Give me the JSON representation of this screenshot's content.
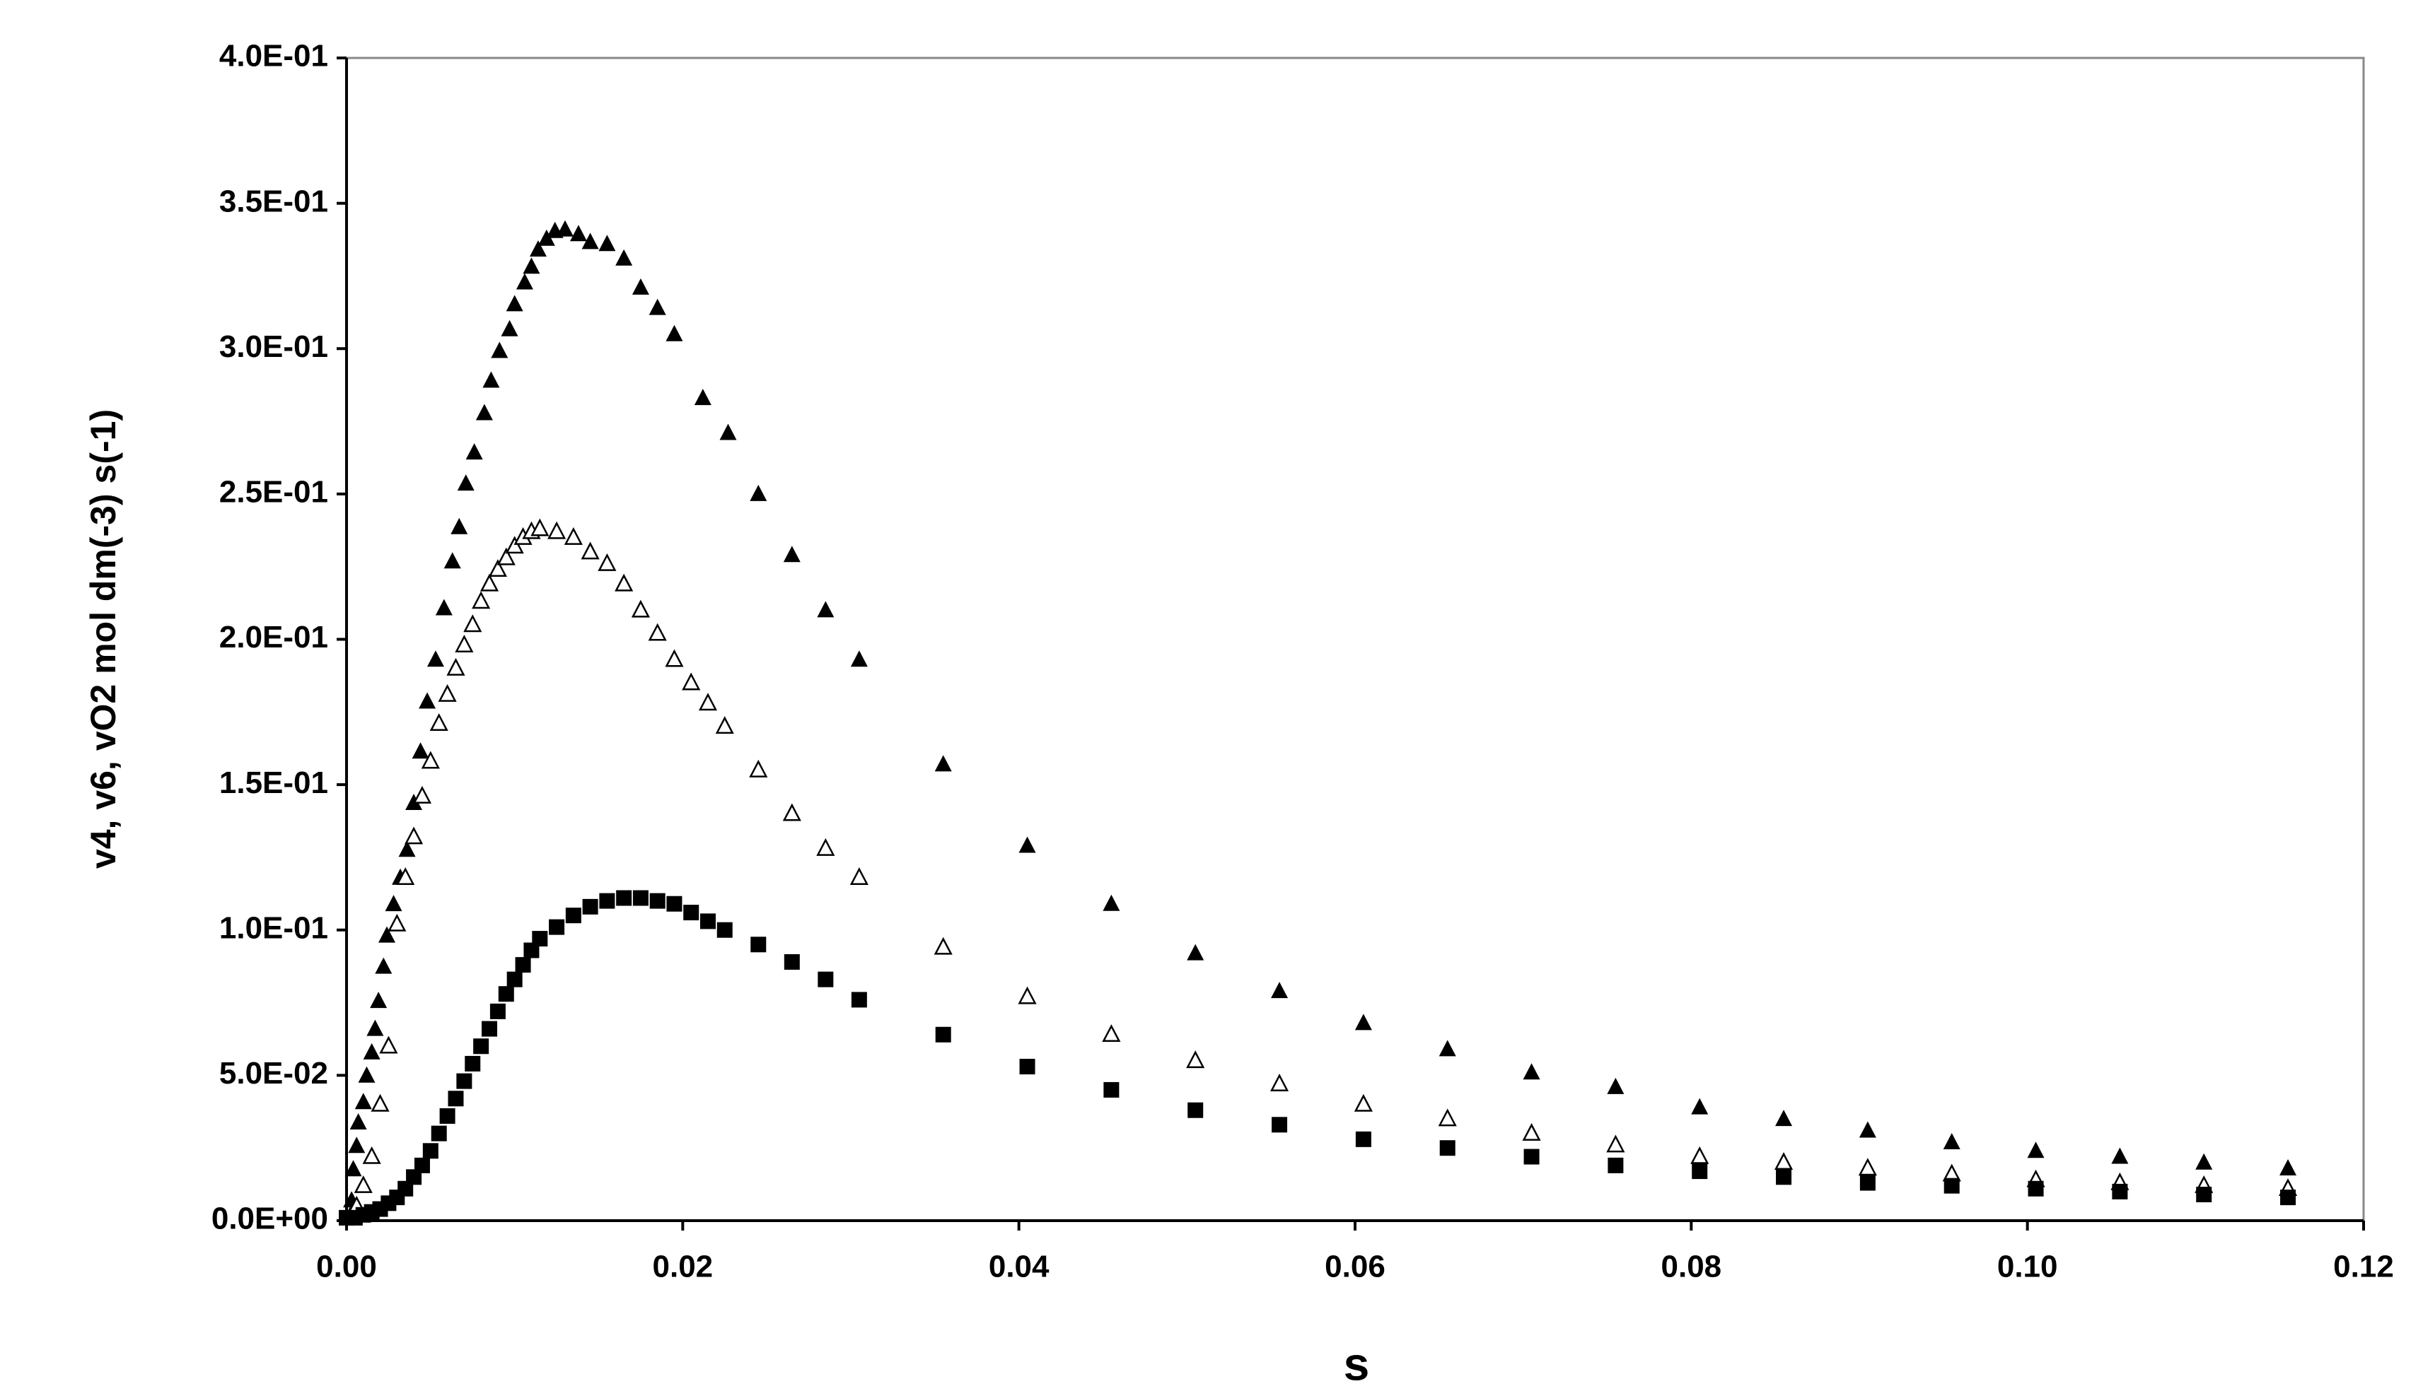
{
  "chart_data": {
    "type": "scatter",
    "x_label": "s",
    "y_label": "v4, v6, vO2 mol dm(-3) s(-1)",
    "xlim": [
      0,
      0.12
    ],
    "ylim": [
      0,
      0.4
    ],
    "xticks": [
      {
        "value": 0,
        "label": "0.00"
      },
      {
        "value": 0.02,
        "label": "0.02"
      },
      {
        "value": 0.04,
        "label": "0.04"
      },
      {
        "value": 0.06,
        "label": "0.06"
      },
      {
        "value": 0.08,
        "label": "0.08"
      },
      {
        "value": 0.1,
        "label": "0.10"
      },
      {
        "value": 0.12,
        "label": "0.12"
      }
    ],
    "yticks": [
      {
        "value": 0,
        "label": "0.0E+00"
      },
      {
        "value": 0.05,
        "label": "5.0E-02"
      },
      {
        "value": 0.1,
        "label": "1.0E-01"
      },
      {
        "value": 0.15,
        "label": "1.5E-01"
      },
      {
        "value": 0.2,
        "label": "2.0E-01"
      },
      {
        "value": 0.25,
        "label": "2.5E-01"
      },
      {
        "value": 0.3,
        "label": "3.0E-01"
      },
      {
        "value": 0.35,
        "label": "3.5E-01"
      },
      {
        "value": 0.4,
        "label": "4.0E-01"
      }
    ],
    "series": [
      {
        "marker": "triangle",
        "color": "#000000",
        "x": [
          0.0002,
          0.0003,
          0.0004,
          0.0006,
          0.0007,
          0.001,
          0.0012,
          0.0015,
          0.0017,
          0.0019,
          0.0022,
          0.0024,
          0.0028,
          0.0032,
          0.0036,
          0.004,
          0.0044,
          0.0048,
          0.0053,
          0.0058,
          0.0063,
          0.0067,
          0.0071,
          0.0076,
          0.0082,
          0.0086,
          0.0091,
          0.0097,
          0.01,
          0.0106,
          0.011,
          0.0114,
          0.0119,
          0.0124,
          0.013,
          0.0138,
          0.0145,
          0.0155,
          0.0165,
          0.0175,
          0.0185,
          0.0195,
          0.0212,
          0.0227,
          0.0245,
          0.0265,
          0.0285,
          0.0305,
          0.0355,
          0.0405,
          0.0455,
          0.0505,
          0.0555,
          0.0605,
          0.0655,
          0.0705,
          0.0755,
          0.0805,
          0.0855,
          0.0905,
          0.0955,
          0.1005,
          0.1055,
          0.1105,
          0.1155
        ],
        "values": [
          0.0016,
          0.007,
          0.0177,
          0.0257,
          0.0338,
          0.0408,
          0.0499,
          0.0579,
          0.066,
          0.0756,
          0.0874,
          0.0981,
          0.1089,
          0.118,
          0.1276,
          0.1437,
          0.1614,
          0.1786,
          0.193,
          0.2107,
          0.2268,
          0.2386,
          0.2536,
          0.2643,
          0.2778,
          0.289,
          0.2992,
          0.3067,
          0.3153,
          0.3228,
          0.3282,
          0.3341,
          0.3378,
          0.3405,
          0.341,
          0.3394,
          0.3367,
          0.336,
          0.331,
          0.321,
          0.314,
          0.305,
          0.283,
          0.271,
          0.25,
          0.229,
          0.21,
          0.193,
          0.157,
          0.129,
          0.109,
          0.092,
          0.079,
          0.068,
          0.059,
          0.051,
          0.046,
          0.039,
          0.035,
          0.031,
          0.027,
          0.024,
          0.022,
          0.02,
          0.018
        ]
      },
      {
        "marker": "triangle-open",
        "color": "#000000",
        "x": [
          0.0002,
          0.0006,
          0.001,
          0.0015,
          0.002,
          0.0025,
          0.003,
          0.0035,
          0.004,
          0.0045,
          0.005,
          0.0055,
          0.006,
          0.0065,
          0.007,
          0.0075,
          0.008,
          0.0085,
          0.009,
          0.0095,
          0.01,
          0.0105,
          0.011,
          0.0115,
          0.0125,
          0.0135,
          0.0145,
          0.0155,
          0.0165,
          0.0175,
          0.0185,
          0.0195,
          0.0205,
          0.0215,
          0.0225,
          0.0245,
          0.0265,
          0.0285,
          0.0305,
          0.0355,
          0.0405,
          0.0455,
          0.0505,
          0.0555,
          0.0605,
          0.0655,
          0.0705,
          0.0755,
          0.0805,
          0.0855,
          0.0905,
          0.0955,
          0.1005,
          0.1055,
          0.1105,
          0.1155
        ],
        "values": [
          0.001,
          0.005,
          0.012,
          0.022,
          0.04,
          0.06,
          0.102,
          0.118,
          0.132,
          0.146,
          0.158,
          0.171,
          0.181,
          0.19,
          0.198,
          0.205,
          0.213,
          0.219,
          0.224,
          0.228,
          0.232,
          0.235,
          0.237,
          0.238,
          0.237,
          0.235,
          0.23,
          0.226,
          0.219,
          0.21,
          0.202,
          0.193,
          0.185,
          0.178,
          0.17,
          0.155,
          0.14,
          0.128,
          0.118,
          0.094,
          0.077,
          0.064,
          0.055,
          0.047,
          0.04,
          0.035,
          0.03,
          0.026,
          0.022,
          0.02,
          0.018,
          0.016,
          0.014,
          0.013,
          0.012,
          0.011
        ]
      },
      {
        "marker": "square",
        "color": "#000000",
        "x": [
          0,
          0.0005,
          0.001,
          0.0015,
          0.002,
          0.0025,
          0.003,
          0.0035,
          0.004,
          0.0045,
          0.005,
          0.0055,
          0.006,
          0.0065,
          0.007,
          0.0075,
          0.008,
          0.0085,
          0.009,
          0.0095,
          0.01,
          0.0105,
          0.011,
          0.0115,
          0.0125,
          0.0135,
          0.0145,
          0.0155,
          0.0165,
          0.0175,
          0.0185,
          0.0195,
          0.0205,
          0.0215,
          0.0225,
          0.0245,
          0.0265,
          0.0285,
          0.0305,
          0.0355,
          0.0405,
          0.0455,
          0.0505,
          0.0555,
          0.0605,
          0.0655,
          0.0705,
          0.0755,
          0.0805,
          0.0855,
          0.0905,
          0.0955,
          0.1005,
          0.1055,
          0.1105,
          0.1155
        ],
        "values": [
          0.001,
          0.001,
          0.002,
          0.003,
          0.004,
          0.006,
          0.008,
          0.011,
          0.015,
          0.019,
          0.024,
          0.03,
          0.036,
          0.042,
          0.048,
          0.054,
          0.06,
          0.066,
          0.072,
          0.078,
          0.083,
          0.088,
          0.093,
          0.097,
          0.101,
          0.105,
          0.108,
          0.11,
          0.111,
          0.111,
          0.11,
          0.109,
          0.106,
          0.103,
          0.1,
          0.095,
          0.089,
          0.083,
          0.076,
          0.064,
          0.053,
          0.045,
          0.038,
          0.033,
          0.028,
          0.025,
          0.022,
          0.019,
          0.017,
          0.015,
          0.013,
          0.012,
          0.011,
          0.01,
          0.009,
          0.008
        ]
      }
    ]
  }
}
